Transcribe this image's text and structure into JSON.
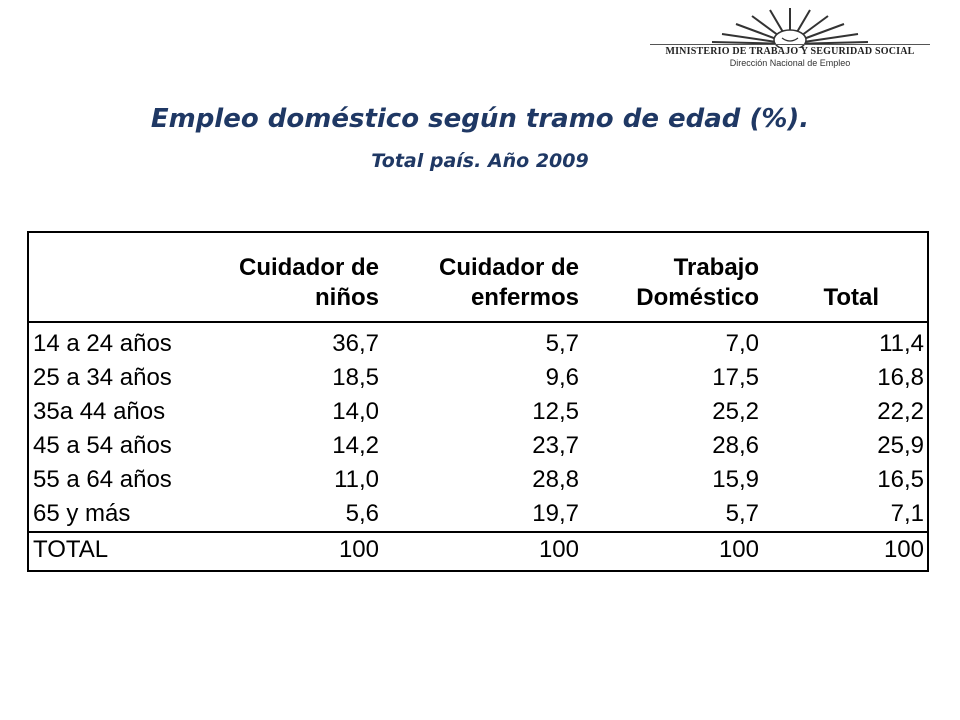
{
  "logo": {
    "organization": "MINISTERIO DE TRABAJO Y SEGURIDAD SOCIAL",
    "department": "Dirección Nacional de Empleo"
  },
  "title": "Empleo doméstico según tramo de edad (%).",
  "subtitle": "Total país. Año 2009",
  "table": {
    "headers": [
      {
        "line1": "",
        "line2": ""
      },
      {
        "line1": "Cuidador de",
        "line2": "niños"
      },
      {
        "line1": "Cuidador de",
        "line2": "enfermos"
      },
      {
        "line1": "Trabajo",
        "line2": "Doméstico"
      },
      {
        "line1": "",
        "line2": "Total"
      }
    ],
    "rows": [
      {
        "label": "14 a 24 años",
        "values": [
          "36,7",
          "5,7",
          "7,0",
          "11,4"
        ]
      },
      {
        "label": "25 a 34 años",
        "values": [
          "18,5",
          "9,6",
          "17,5",
          "16,8"
        ]
      },
      {
        "label": "35a 44 años",
        "values": [
          "14,0",
          "12,5",
          "25,2",
          "22,2"
        ]
      },
      {
        "label": "45 a 54 años",
        "values": [
          "14,2",
          "23,7",
          "28,6",
          "25,9"
        ]
      },
      {
        "label": "55 a 64 años",
        "values": [
          "11,0",
          "28,8",
          "15,9",
          "16,5"
        ]
      },
      {
        "label": "65 y más",
        "values": [
          "5,6",
          "19,7",
          "5,7",
          "7,1"
        ]
      }
    ],
    "total": {
      "label": "TOTAL",
      "values": [
        "100",
        "100",
        "100",
        "100"
      ]
    }
  }
}
